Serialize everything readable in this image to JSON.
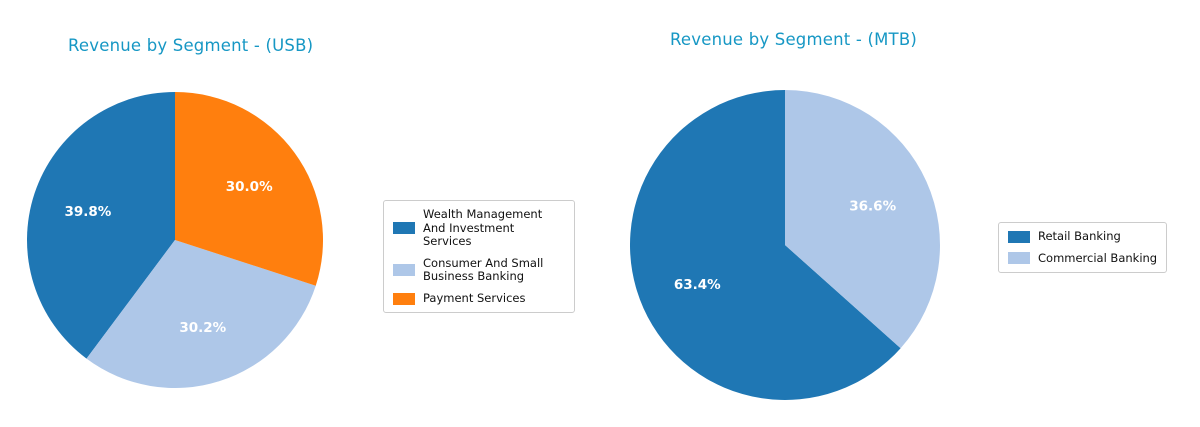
{
  "figure": {
    "background_color": "#ffffff",
    "percent_label_color": "#ffffff"
  },
  "chart_data": [
    {
      "type": "pie",
      "title": "Revenue by Segment - (USB)",
      "title_color": "#1697c4",
      "labels": [
        "Wealth Management And Investment Services",
        "Consumer And Small Business Banking",
        "Payment Services"
      ],
      "values": [
        39.8,
        30.2,
        30.0
      ],
      "pct_labels": [
        "39.8%",
        "30.2%",
        "30.0%"
      ],
      "colors": [
        "#1f77b4",
        "#aec7e8",
        "#ff7f0e"
      ],
      "pct_label_color": "#ffffff",
      "start_angle": 90,
      "direction": "counterclockwise",
      "legend_position": "right"
    },
    {
      "type": "pie",
      "title": "Revenue by Segment - (MTB)",
      "title_color": "#1697c4",
      "labels": [
        "Retail Banking",
        "Commercial Banking"
      ],
      "values": [
        63.4,
        36.6
      ],
      "pct_labels": [
        "63.4%",
        "36.6%"
      ],
      "colors": [
        "#1f77b4",
        "#aec7e8"
      ],
      "pct_label_color": "#ffffff",
      "start_angle": 90,
      "direction": "counterclockwise",
      "legend_position": "right"
    }
  ]
}
